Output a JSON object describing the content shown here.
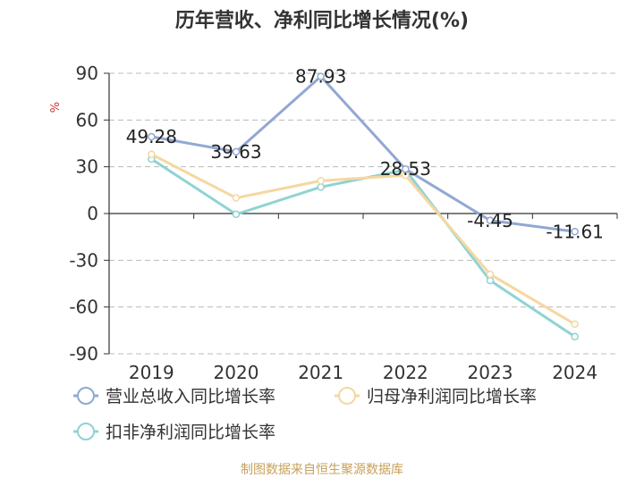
{
  "chart_data": {
    "type": "line",
    "title": "历年营收、净利同比增长情况(%)",
    "ylabel": "%",
    "xlabel": "",
    "categories": [
      "2019",
      "2020",
      "2021",
      "2022",
      "2023",
      "2024"
    ],
    "ylim": [
      -90,
      90
    ],
    "yticks": [
      90,
      60,
      30,
      0,
      -30,
      -60,
      -90
    ],
    "grid": true,
    "legend_position": "bottom",
    "series": [
      {
        "name": "营业总收入同比增长率",
        "color": "#91a8d2",
        "values": [
          49.28,
          39.63,
          87.93,
          28.53,
          -4.45,
          -11.61
        ],
        "labels": [
          "49.28",
          "39.63",
          "87.93",
          "28.53",
          "-4.45",
          "-11.61"
        ]
      },
      {
        "name": "归母净利润同比增长率",
        "color": "#f5d7a0",
        "values": [
          38.0,
          10.0,
          21.0,
          24.5,
          -39.0,
          -71.0
        ]
      },
      {
        "name": "扣非净利润同比增长率",
        "color": "#8fd3d3",
        "values": [
          35.0,
          -0.5,
          17.0,
          28.0,
          -43.0,
          -79.0
        ]
      }
    ]
  },
  "footer": {
    "source": "制图数据来自恒生聚源数据库"
  },
  "colors": {
    "title": "#333333",
    "axis_text": "#333333",
    "unit": "#cc3333",
    "grid": "#bbbbbb",
    "source": "#c9a05a"
  }
}
